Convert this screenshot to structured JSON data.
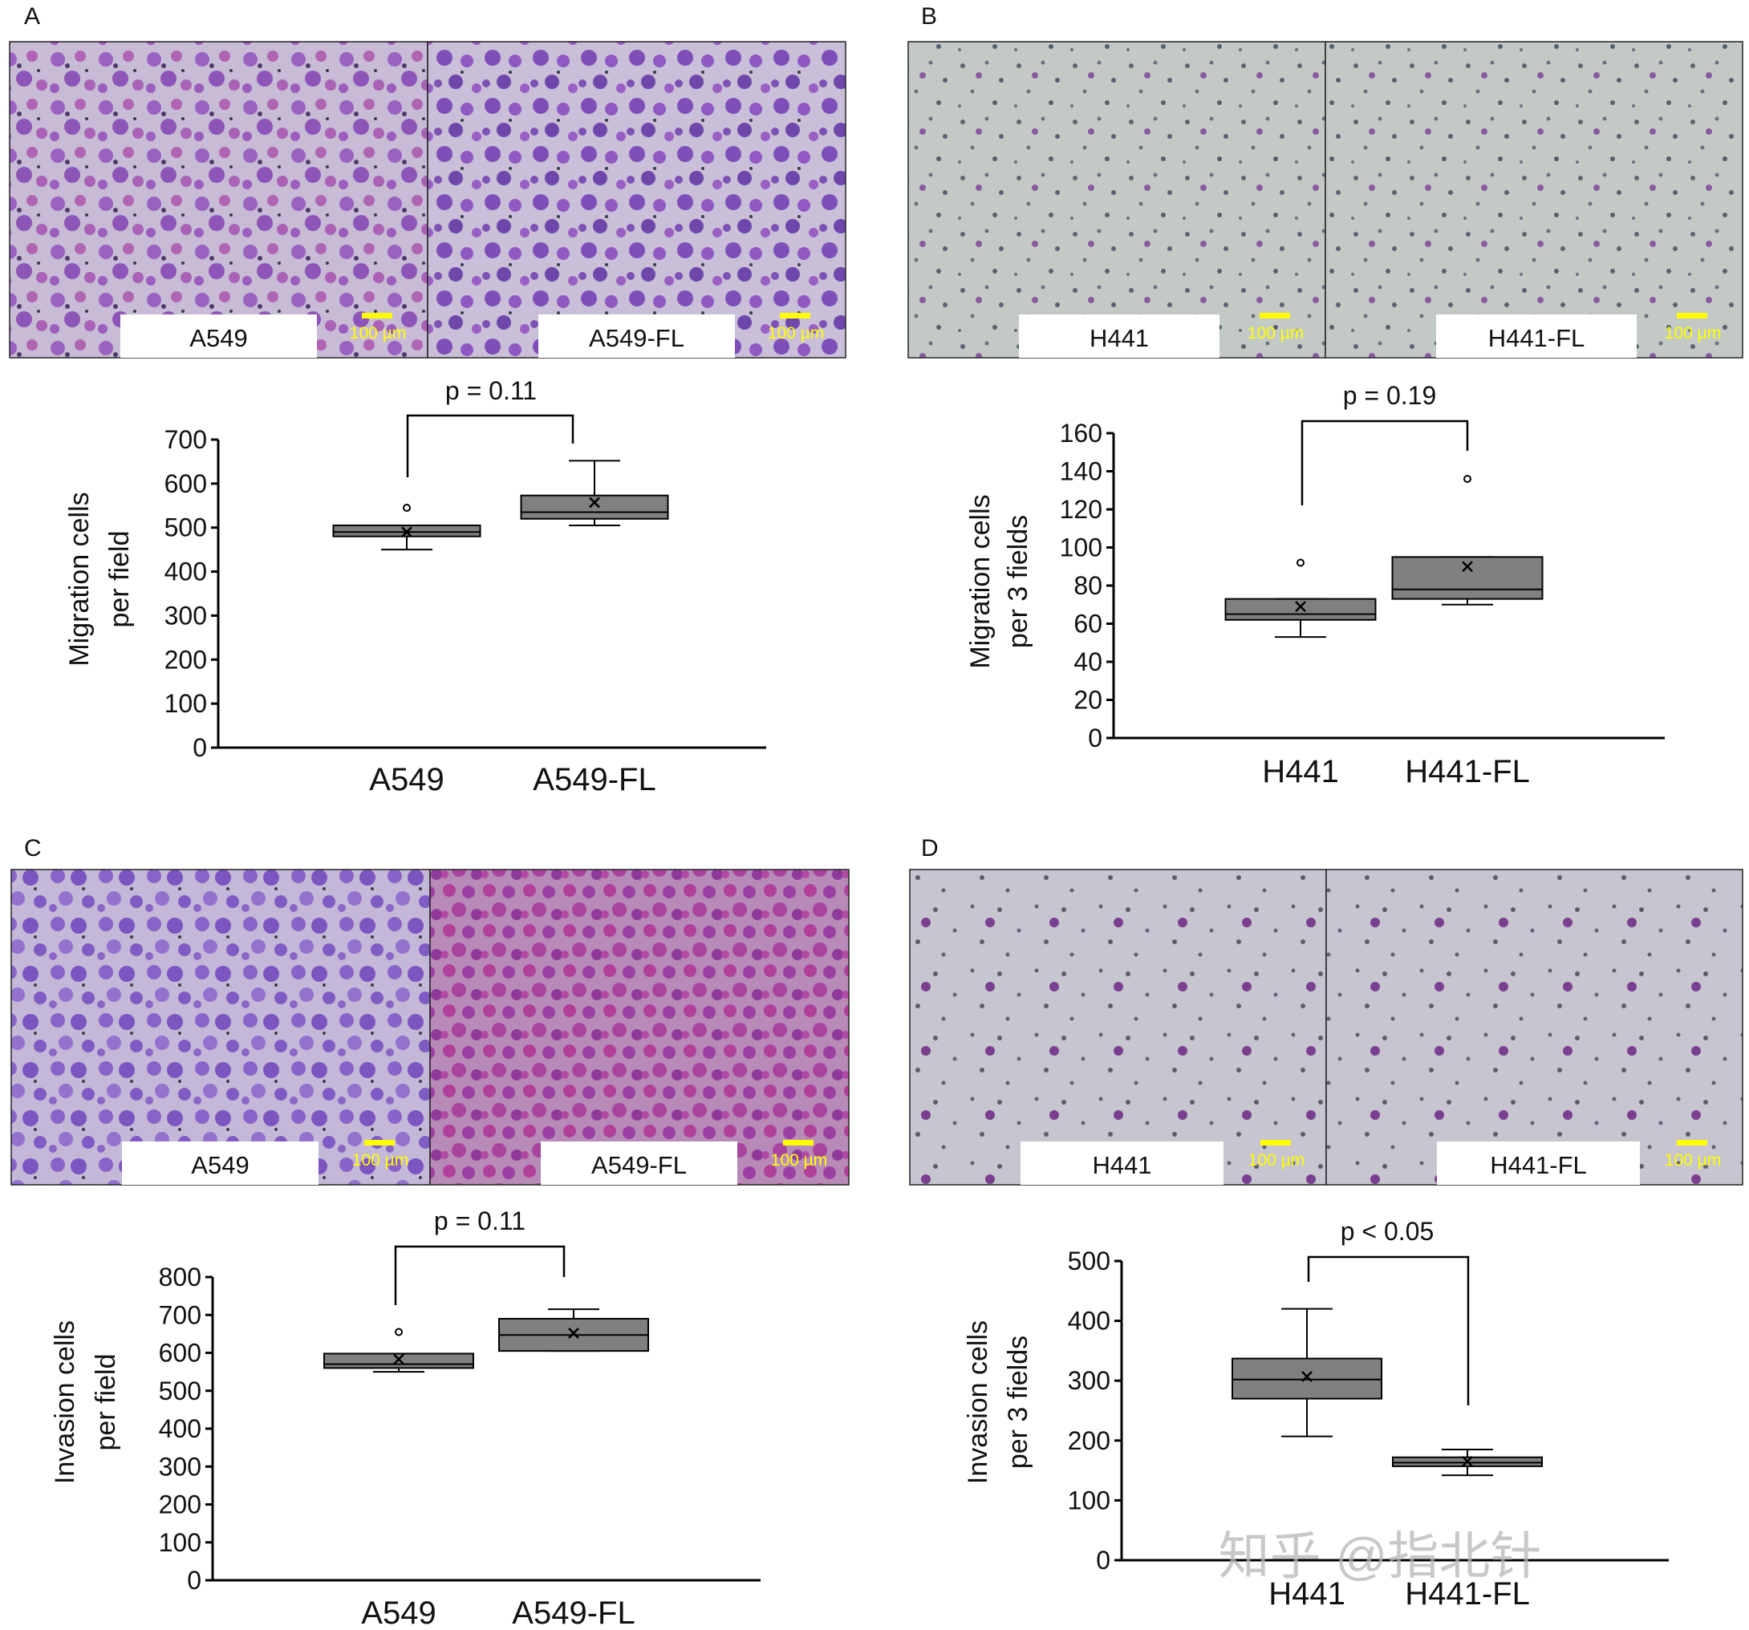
{
  "panels": [
    {
      "letter": "A",
      "images": [
        {
          "label": "A549",
          "scale": "100 µm"
        },
        {
          "label": "A549-FL",
          "scale": "100 µm"
        }
      ]
    },
    {
      "letter": "B",
      "images": [
        {
          "label": "H441",
          "scale": "100 µm"
        },
        {
          "label": "H441-FL",
          "scale": "100 µm"
        }
      ]
    },
    {
      "letter": "C",
      "images": [
        {
          "label": "A549",
          "scale": "100 µm"
        },
        {
          "label": "A549-FL",
          "scale": "100 µm"
        }
      ]
    },
    {
      "letter": "D",
      "images": [
        {
          "label": "H441",
          "scale": "100 µm"
        },
        {
          "label": "H441-FL",
          "scale": "100 µm"
        }
      ]
    }
  ],
  "watermark": "知乎 @指北针",
  "colors": {
    "box_fill": "#808080",
    "scale_bar": "#ffff00",
    "line": "#000000"
  },
  "chart_data": [
    {
      "type": "box",
      "ylabel": [
        "Migration cells",
        "per field"
      ],
      "ylim": [
        0,
        700
      ],
      "yticks": [
        0,
        100,
        200,
        300,
        400,
        500,
        600,
        700
      ],
      "categories": [
        "A549",
        "A549-FL"
      ],
      "boxes": [
        {
          "whisker_low": 450,
          "q1": 480,
          "median": 490,
          "q3": 505,
          "whisker_high": 505,
          "mean": 490,
          "outliers": [
            545
          ]
        },
        {
          "whisker_low": 505,
          "q1": 520,
          "median": 535,
          "q3": 573,
          "whisker_high": 652,
          "mean": 557,
          "outliers": []
        }
      ],
      "annotation": "p = 0.11"
    },
    {
      "type": "box",
      "ylabel": [
        "Migration cells",
        "per 3 fields"
      ],
      "ylim": [
        0,
        160
      ],
      "yticks": [
        0,
        20,
        40,
        60,
        80,
        100,
        120,
        140,
        160
      ],
      "categories": [
        "H441",
        "H441-FL"
      ],
      "boxes": [
        {
          "whisker_low": 53,
          "q1": 62,
          "median": 65,
          "q3": 73,
          "whisker_high": 73,
          "mean": 69,
          "outliers": [
            92
          ]
        },
        {
          "whisker_low": 70,
          "q1": 73,
          "median": 78,
          "q3": 95,
          "whisker_high": 95,
          "mean": 90,
          "outliers": [
            136
          ]
        }
      ],
      "annotation": "p = 0.19"
    },
    {
      "type": "box",
      "ylabel": [
        "Invasion cells",
        "per field"
      ],
      "ylim": [
        0,
        800
      ],
      "yticks": [
        0,
        100,
        200,
        300,
        400,
        500,
        600,
        700,
        800
      ],
      "categories": [
        "A549",
        "A549-FL"
      ],
      "boxes": [
        {
          "whisker_low": 550,
          "q1": 560,
          "median": 570,
          "q3": 598,
          "whisker_high": 598,
          "mean": 583,
          "outliers": [
            655
          ]
        },
        {
          "whisker_low": 605,
          "q1": 605,
          "median": 647,
          "q3": 690,
          "whisker_high": 715,
          "mean": 652,
          "outliers": []
        }
      ],
      "annotation": "p = 0.11"
    },
    {
      "type": "box",
      "ylabel": [
        "Invasion cells",
        "per 3 fields"
      ],
      "ylim": [
        0,
        500
      ],
      "yticks": [
        0,
        100,
        200,
        300,
        400,
        500
      ],
      "categories": [
        "H441",
        "H441-FL"
      ],
      "boxes": [
        {
          "whisker_low": 207,
          "q1": 270,
          "median": 302,
          "q3": 337,
          "whisker_high": 420,
          "mean": 307,
          "outliers": []
        },
        {
          "whisker_low": 142,
          "q1": 157,
          "median": 163,
          "q3": 172,
          "whisker_high": 185,
          "mean": 165,
          "outliers": []
        }
      ],
      "annotation": "p < 0.05"
    }
  ]
}
